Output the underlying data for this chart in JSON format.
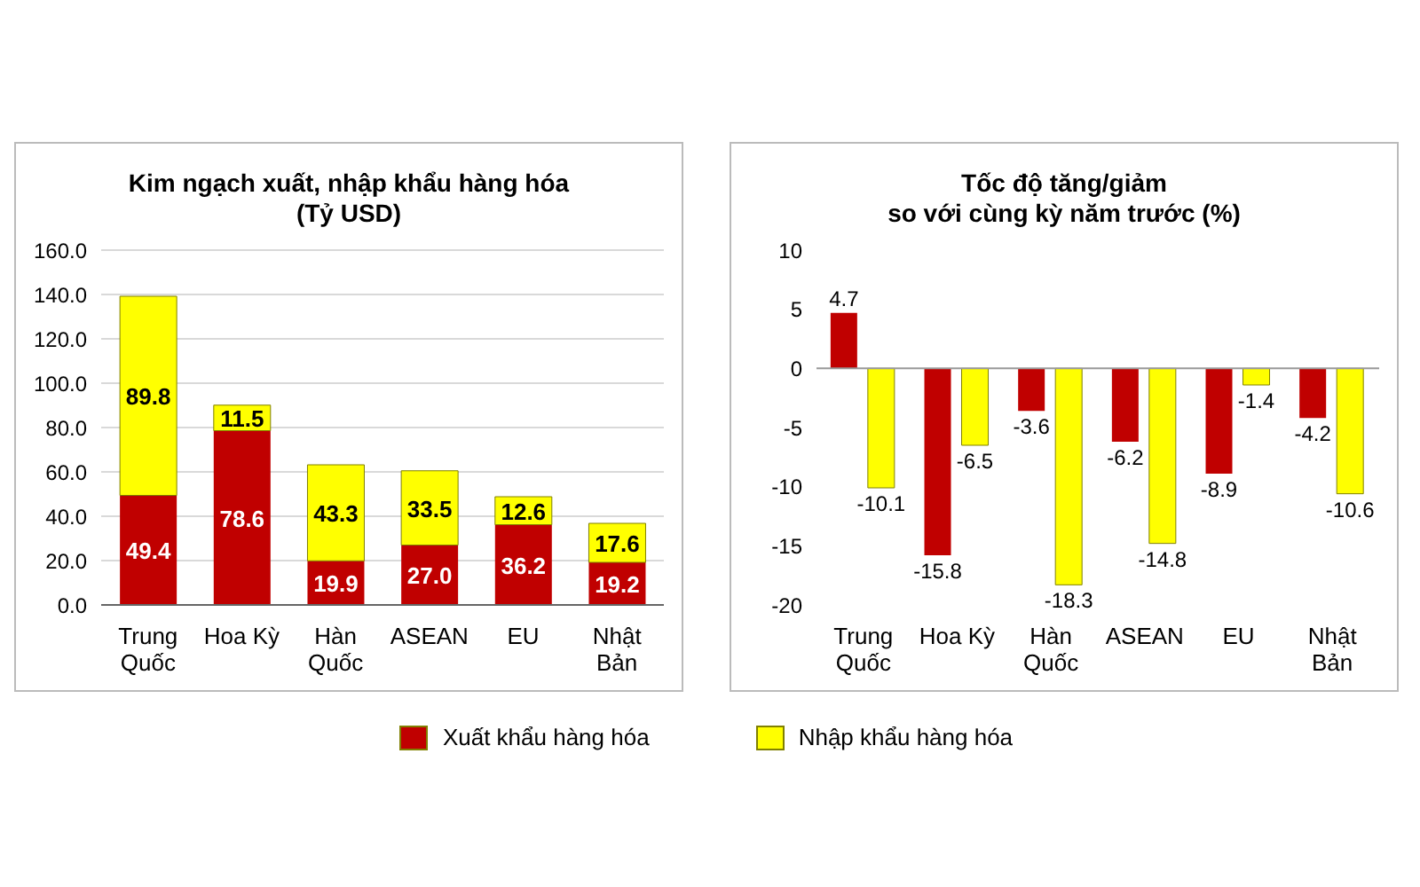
{
  "chart_data": [
    {
      "type": "bar",
      "title": "Kim ngạch xuất, nhập khẩu hàng hóa",
      "subtitle": "(Tỷ USD)",
      "stacked": true,
      "categories": [
        "Trung Quốc",
        "Hoa Kỳ",
        "Hàn Quốc",
        "ASEAN",
        "EU",
        "Nhật Bản"
      ],
      "series": [
        {
          "name": "Xuất khẩu hàng hóa",
          "color": "#c00000",
          "values": [
            49.4,
            78.6,
            19.9,
            27.0,
            36.2,
            19.2
          ],
          "value_labels": [
            "49.4",
            "78.6",
            "19.9",
            "27.0",
            "36.2",
            "19.2"
          ]
        },
        {
          "name": "Nhập khẩu hàng hóa",
          "color": "#ffff00",
          "values": [
            89.8,
            11.5,
            43.3,
            33.5,
            12.6,
            17.6
          ],
          "value_labels": [
            "89.8",
            "11.5",
            "43.3",
            "33.5",
            "12.6",
            "17.6"
          ]
        }
      ],
      "ylim": [
        0,
        160
      ],
      "yticks": [
        {
          "value": 0,
          "label": "0.0"
        },
        {
          "value": 20,
          "label": "20.0"
        },
        {
          "value": 40,
          "label": "40.0"
        },
        {
          "value": 60,
          "label": "60.0"
        },
        {
          "value": 80,
          "label": "80.0"
        },
        {
          "value": 100,
          "label": "100.0"
        },
        {
          "value": 120,
          "label": "120.0"
        },
        {
          "value": 140,
          "label": "140.0"
        },
        {
          "value": 160,
          "label": "160.0"
        }
      ],
      "grid": "y",
      "legend": "bottom"
    },
    {
      "type": "bar",
      "title": "Tốc độ tăng/giảm",
      "subtitle": "so với cùng kỳ năm trước (%)",
      "categories": [
        "Trung Quốc",
        "Hoa Kỳ",
        "Hàn Quốc",
        "ASEAN",
        "EU",
        "Nhật Bản"
      ],
      "series": [
        {
          "color": "#c00000",
          "values": [
            4.7,
            -15.8,
            -3.6,
            -6.2,
            -8.9,
            -4.2
          ]
        },
        {
          "color": "#ffff00",
          "values": [
            -10.1,
            -6.5,
            -18.3,
            -14.8,
            -1.4,
            -10.6
          ]
        }
      ],
      "ylim": [
        -20,
        10
      ],
      "yticks": [
        -20,
        -15,
        -10,
        -5,
        0,
        5,
        10
      ],
      "data_labels": true
    }
  ]
}
